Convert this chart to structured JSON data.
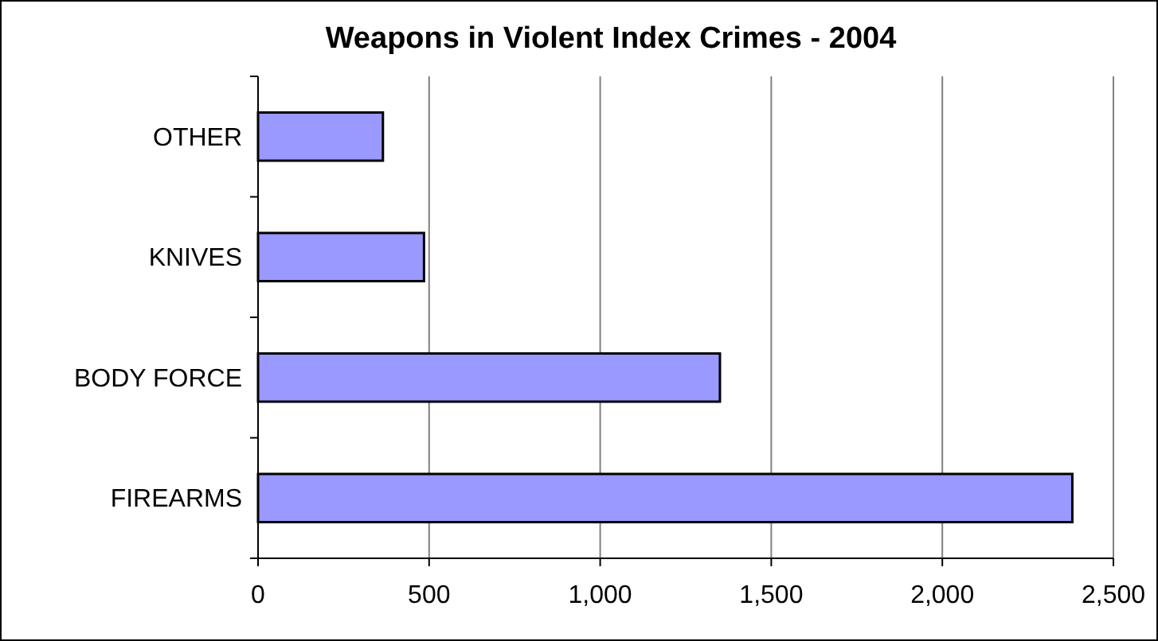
{
  "chart_data": {
    "type": "bar",
    "title": "Weapons in Violent Index Crimes - 2004",
    "orientation": "horizontal",
    "categories": [
      "OTHER",
      "KNIVES",
      "BODY FORCE",
      "FIREARMS"
    ],
    "values": [
      365,
      485,
      1350,
      2380
    ],
    "color": "#9999ff",
    "xlim": [
      0,
      2500
    ],
    "xticks": [
      0,
      {
        "value": 500,
        "label": "500"
      },
      {
        "value": 1000,
        "label": "1,000"
      },
      {
        "value": 1500,
        "label": "1,500"
      },
      {
        "value": 2000,
        "label": "2,000"
      },
      {
        "value": 2500,
        "label": "2,500"
      }
    ],
    "grid": "x"
  }
}
